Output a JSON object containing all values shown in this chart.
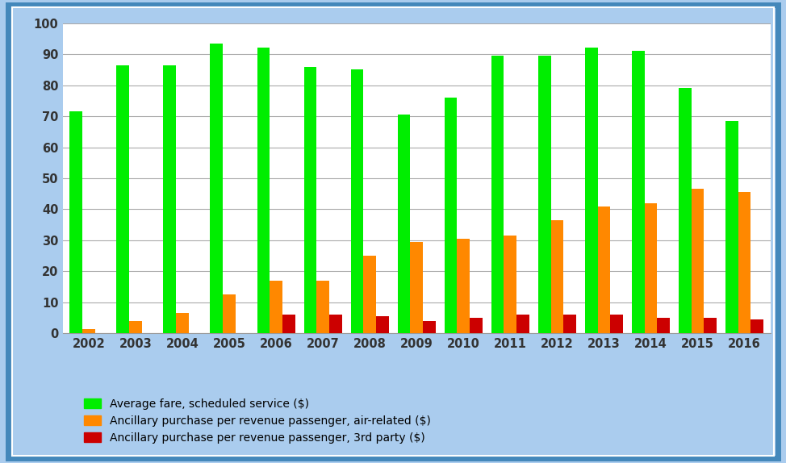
{
  "years": [
    2002,
    2003,
    2004,
    2005,
    2006,
    2007,
    2008,
    2009,
    2010,
    2011,
    2012,
    2013,
    2014,
    2015,
    2016
  ],
  "avg_fare": [
    71.5,
    86.5,
    86.5,
    93.5,
    92.0,
    86.0,
    85.0,
    70.5,
    76.0,
    89.5,
    89.5,
    92.0,
    91.0,
    79.0,
    68.5
  ],
  "air_related": [
    1.5,
    4.0,
    6.5,
    12.5,
    17.0,
    17.0,
    25.0,
    29.5,
    30.5,
    31.5,
    36.5,
    41.0,
    42.0,
    46.5,
    45.5
  ],
  "third_party": [
    0.0,
    0.0,
    0.0,
    0.0,
    6.0,
    6.0,
    5.5,
    4.0,
    5.0,
    6.0,
    6.0,
    6.0,
    5.0,
    5.0,
    4.5
  ],
  "color_green": "#00ee00",
  "color_orange": "#ff8800",
  "color_red": "#cc0000",
  "legend_labels": [
    "Average fare, scheduled service ($)",
    "Ancillary purchase per revenue passenger, air-related ($)",
    "Ancillary purchase per revenue passenger, 3rd party ($)"
  ],
  "ylim": [
    0,
    100
  ],
  "yticks": [
    0,
    10,
    20,
    30,
    40,
    50,
    60,
    70,
    80,
    90,
    100
  ],
  "bg_outer": "#aaccee",
  "bg_inner": "#ffffff",
  "grid_color": "#aaaaaa",
  "bar_width": 0.27,
  "figsize": [
    9.74,
    5.74
  ],
  "dpi": 100
}
